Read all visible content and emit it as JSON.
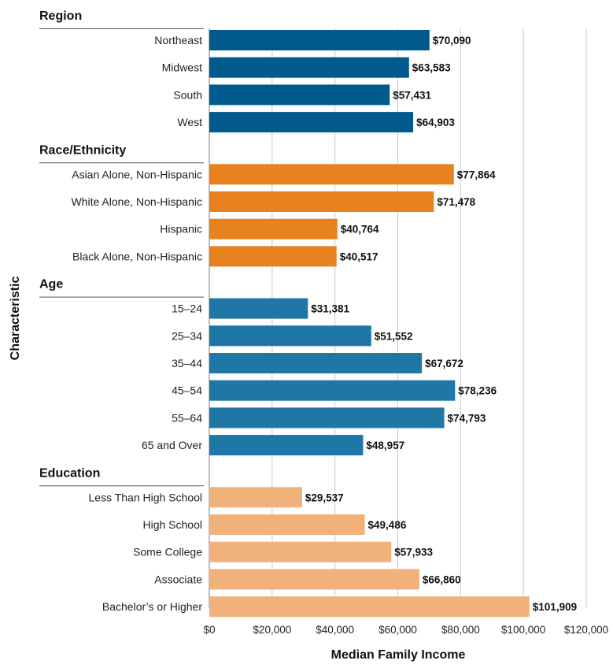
{
  "chart_data": {
    "type": "bar",
    "orientation": "horizontal",
    "xlabel": "Median Family Income",
    "ylabel": "Characteristic",
    "xlim": [
      0,
      120000
    ],
    "xticks": [
      0,
      20000,
      40000,
      60000,
      80000,
      100000,
      120000
    ],
    "xtick_labels": [
      "$0",
      "$20,000",
      "$40,000",
      "$60,000",
      "$80,000",
      "$100,000",
      "$120,000"
    ],
    "grid": "vertical",
    "groups": [
      {
        "name": "Region",
        "color": "#005a8c",
        "categories": [
          "Northeast",
          "Midwest",
          "South",
          "West"
        ],
        "values": [
          70090,
          63583,
          57431,
          64903
        ],
        "value_labels": [
          "$70,090",
          "$63,583",
          "$57,431",
          "$64,903"
        ]
      },
      {
        "name": "Race/Ethnicity",
        "color": "#e7821e",
        "categories": [
          "Asian Alone, Non-Hispanic",
          "White Alone, Non-Hispanic",
          "Hispanic",
          "Black Alone, Non-Hispanic"
        ],
        "values": [
          77864,
          71478,
          40764,
          40517
        ],
        "value_labels": [
          "$77,864",
          "$71,478",
          "$40,764",
          "$40,517"
        ]
      },
      {
        "name": "Age",
        "color": "#1f77a6",
        "categories": [
          "15–24",
          "25–34",
          "35–44",
          "45–54",
          "55–64",
          "65 and Over"
        ],
        "values": [
          31381,
          51552,
          67672,
          78236,
          74793,
          48957
        ],
        "value_labels": [
          "$31,381",
          "$51,552",
          "$67,672",
          "$78,236",
          "$74,793",
          "$48,957"
        ]
      },
      {
        "name": "Education",
        "color": "#f0b27a",
        "categories": [
          "Less Than High School",
          "High School",
          "Some College",
          "Associate",
          "Bachelor’s or Higher"
        ],
        "values": [
          29537,
          49486,
          57933,
          66860,
          101909
        ],
        "value_labels": [
          "$29,537",
          "$49,486",
          "$57,933",
          "$66,860",
          "$101,909"
        ]
      }
    ]
  }
}
